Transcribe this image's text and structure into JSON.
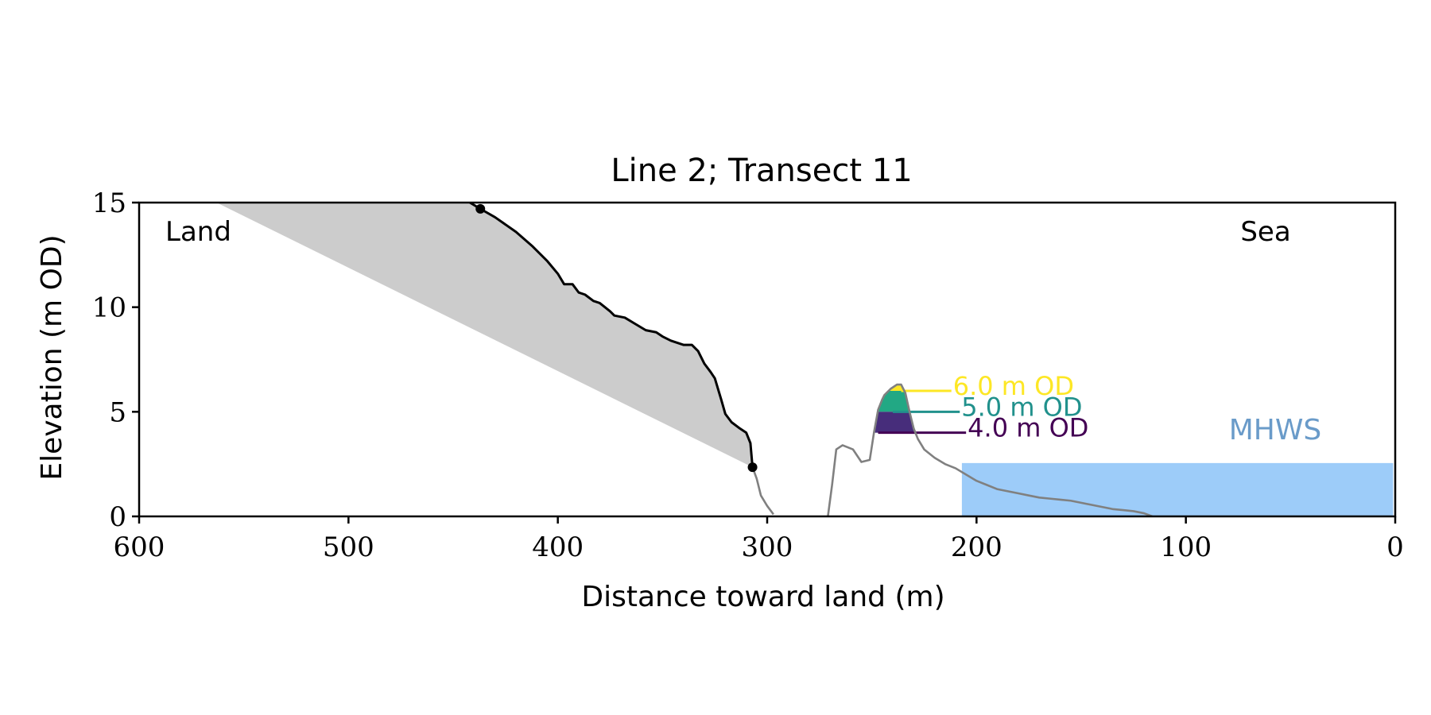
{
  "chart_data": {
    "type": "line",
    "title": "Line 2; Transect 11",
    "xlabel": "Distance toward land (m)",
    "ylabel": "Elevation (m OD)",
    "xlim": [
      600,
      0
    ],
    "ylim": [
      0,
      15
    ],
    "x_ticks": [
      "600",
      "500",
      "400",
      "300",
      "200",
      "100",
      "0"
    ],
    "y_ticks": [
      "0",
      "5",
      "10",
      "15"
    ],
    "x_tick_values": [
      600,
      500,
      400,
      300,
      200,
      100,
      0
    ],
    "y_tick_values": [
      0,
      5,
      10,
      15
    ],
    "grid": false,
    "corner_labels": {
      "left": "Land",
      "right": "Sea"
    },
    "colors": {
      "cliff_profile": "#000000",
      "shore_profile": "#808080",
      "cliff_wedge": "#cccccc",
      "sea": "#9dccf9",
      "mhws_label": "#6a9bc9",
      "level_6": "#fde725",
      "level_5": "#21918c",
      "level_4": "#440154",
      "band_6_to_5": "#22a884",
      "band_5_to_4": "#472d7b"
    },
    "mhws": {
      "label": "MHWS",
      "elevation": 2.55,
      "x_from": 207,
      "x_to": 1
    },
    "cliff_wedge": {
      "top": [
        563,
        15
      ],
      "bottom": [
        307,
        2.35
      ],
      "cliff_top_x": 442
    },
    "cliff_profile": {
      "x": [
        442,
        437,
        430,
        420,
        412,
        405,
        400,
        397,
        393,
        390,
        387,
        383,
        380,
        375,
        373,
        368,
        363,
        358,
        353,
        350,
        346,
        343,
        340,
        336,
        333,
        330,
        327,
        325,
        322,
        320,
        317,
        313,
        310,
        308,
        307
      ],
      "y": [
        15.0,
        14.7,
        14.3,
        13.6,
        12.9,
        12.2,
        11.6,
        11.1,
        11.1,
        10.7,
        10.6,
        10.3,
        10.2,
        9.8,
        9.6,
        9.5,
        9.2,
        8.9,
        8.8,
        8.6,
        8.4,
        8.3,
        8.2,
        8.2,
        7.9,
        7.3,
        6.9,
        6.6,
        5.6,
        4.9,
        4.5,
        4.2,
        4.0,
        3.5,
        2.35
      ]
    },
    "shore_profile_a": {
      "x": [
        307,
        305,
        303,
        300,
        297
      ],
      "y": [
        2.35,
        1.8,
        1.0,
        0.5,
        0.1
      ]
    },
    "shore_profile_b": {
      "x": [
        271,
        269,
        267,
        264,
        259,
        255,
        251,
        249,
        247,
        245,
        244,
        241,
        238,
        236,
        234,
        232,
        230,
        228,
        225,
        220,
        215,
        210,
        205,
        200,
        195,
        190,
        185,
        180,
        175,
        170,
        165,
        160,
        155,
        150,
        145,
        140,
        135,
        130,
        125,
        120,
        116
      ],
      "y": [
        0.0,
        1.5,
        3.2,
        3.4,
        3.2,
        2.6,
        2.7,
        4.0,
        5.1,
        5.6,
        5.8,
        6.1,
        6.3,
        6.3,
        5.9,
        5.0,
        4.2,
        3.7,
        3.2,
        2.8,
        2.5,
        2.3,
        2.0,
        1.7,
        1.5,
        1.3,
        1.2,
        1.1,
        1.0,
        0.9,
        0.85,
        0.8,
        0.75,
        0.65,
        0.55,
        0.45,
        0.35,
        0.3,
        0.25,
        0.15,
        0.0
      ]
    },
    "levels": [
      {
        "label": "6.0 m OD",
        "elevation": 6.0,
        "line_x": [
          236,
          212
        ],
        "color_key": "level_6"
      },
      {
        "label": "5.0 m OD",
        "elevation": 5.0,
        "line_x": [
          240,
          208
        ],
        "color_key": "level_5"
      },
      {
        "label": "4.0 m OD",
        "elevation": 4.0,
        "line_x": [
          247,
          205
        ],
        "color_key": "level_4"
      }
    ],
    "bands": [
      {
        "from": 5.0,
        "to": 6.0,
        "color_key": "band_6_to_5"
      },
      {
        "from": 4.0,
        "to": 5.0,
        "color_key": "band_5_to_4"
      }
    ],
    "markers": [
      {
        "x": 437,
        "y": 14.7
      },
      {
        "x": 307,
        "y": 2.35
      }
    ]
  }
}
